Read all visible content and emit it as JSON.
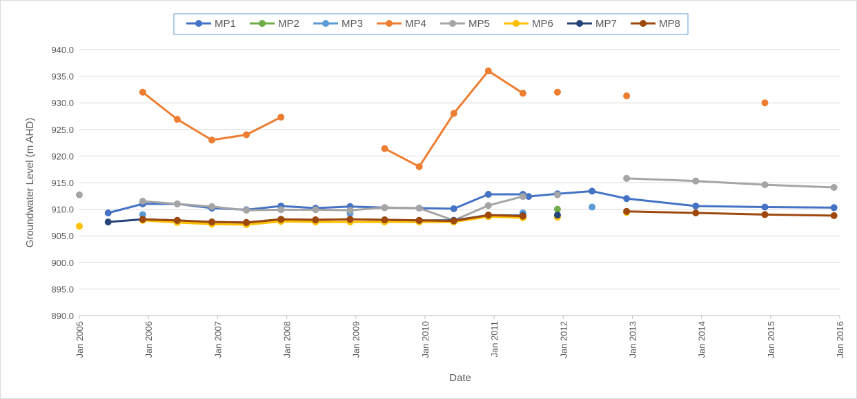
{
  "chart_data": {
    "type": "line",
    "x_label": "Date",
    "y_label": "Groundwater Level (m AHD)",
    "x": [
      "2005-01",
      "2005-06",
      "2005-12",
      "2006-06",
      "2006-12",
      "2007-06",
      "2007-12",
      "2008-06",
      "2008-12",
      "2009-06",
      "2009-12",
      "2010-06",
      "2010-12",
      "2011-06",
      "2011-07",
      "2011-12",
      "2012-06",
      "2012-12",
      "2013-12",
      "2014-12",
      "2015-12"
    ],
    "xlim": [
      "2005-01",
      "2016-01"
    ],
    "xticks": [
      {
        "value": "2005-01",
        "label": "Jan 2005"
      },
      {
        "value": "2006-01",
        "label": "Jan 2006"
      },
      {
        "value": "2007-01",
        "label": "Jan 2007"
      },
      {
        "value": "2008-01",
        "label": "Jan 2008"
      },
      {
        "value": "2009-01",
        "label": "Jan 2009"
      },
      {
        "value": "2010-01",
        "label": "Jan 2010"
      },
      {
        "value": "2011-01",
        "label": "Jan 2011"
      },
      {
        "value": "2012-01",
        "label": "Jan 2012"
      },
      {
        "value": "2013-01",
        "label": "Jan 2013"
      },
      {
        "value": "2014-01",
        "label": "Jan 2014"
      },
      {
        "value": "2015-01",
        "label": "Jan 2015"
      },
      {
        "value": "2016-01",
        "label": "Jan 2016"
      }
    ],
    "ylim": [
      890,
      940
    ],
    "yticks": [
      {
        "value": 890,
        "label": "890.0"
      },
      {
        "value": 895,
        "label": "895.0"
      },
      {
        "value": 900,
        "label": "900.0"
      },
      {
        "value": 905,
        "label": "905.0"
      },
      {
        "value": 910,
        "label": "910.0"
      },
      {
        "value": 915,
        "label": "915.0"
      },
      {
        "value": 920,
        "label": "920.0"
      },
      {
        "value": 925,
        "label": "925.0"
      },
      {
        "value": 930,
        "label": "930.0"
      },
      {
        "value": 935,
        "label": "935.0"
      },
      {
        "value": 940,
        "label": "940.0"
      }
    ],
    "grid": true,
    "legend": "top",
    "series": [
      {
        "name": "MP1",
        "color": "#4472c4",
        "values": [
          null,
          909.3,
          911.0,
          911.0,
          910.2,
          909.9,
          910.6,
          910.2,
          910.5,
          910.3,
          910.2,
          910.1,
          912.8,
          912.8,
          912.4,
          912.9,
          913.4,
          912.0,
          910.6,
          910.4,
          910.3
        ]
      },
      {
        "name": "MP2",
        "color": "#70ad47",
        "values": [
          null,
          null,
          null,
          null,
          null,
          null,
          null,
          null,
          null,
          null,
          null,
          null,
          null,
          null,
          null,
          910.0,
          null,
          null,
          null,
          null,
          null
        ]
      },
      {
        "name": "MP3",
        "color": "#5b9bd5",
        "values": [
          null,
          null,
          909.0,
          null,
          null,
          null,
          null,
          null,
          909.2,
          null,
          null,
          null,
          null,
          909.3,
          null,
          null,
          910.4,
          null,
          null,
          null,
          null
        ]
      },
      {
        "name": "MP4",
        "color": "#ed7d31",
        "values": [
          null,
          null,
          932.0,
          926.9,
          923.0,
          924.0,
          927.3,
          null,
          null,
          921.4,
          918.0,
          928.0,
          936.0,
          931.8,
          null,
          932.0,
          null,
          931.3,
          null,
          930.0,
          null
        ]
      },
      {
        "name": "MP5",
        "color": "#a5a5a5",
        "values": [
          912.7,
          null,
          911.5,
          911.0,
          910.5,
          909.8,
          909.9,
          909.9,
          909.8,
          910.3,
          910.2,
          907.9,
          910.7,
          912.4,
          null,
          912.7,
          null,
          915.8,
          915.3,
          914.6,
          914.1
        ]
      },
      {
        "name": "MP6",
        "color": "#ffc000",
        "values": [
          906.8,
          null,
          907.9,
          907.5,
          907.2,
          907.1,
          907.7,
          907.6,
          907.6,
          907.6,
          907.6,
          907.6,
          908.6,
          908.4,
          null,
          908.5,
          null,
          909.4,
          null,
          null,
          null
        ]
      },
      {
        "name": "MP7",
        "color": "#264478",
        "values": [
          null,
          907.6,
          908.1,
          907.9,
          907.6,
          907.5,
          908.1,
          908.0,
          908.1,
          908.0,
          907.9,
          907.9,
          908.9,
          908.8,
          null,
          908.9,
          null,
          null,
          null,
          null,
          null
        ]
      },
      {
        "name": "MP8",
        "color": "#9e480e",
        "values": [
          null,
          null,
          908.1,
          907.9,
          907.6,
          907.5,
          908.1,
          908.0,
          908.1,
          908.0,
          907.9,
          907.8,
          908.9,
          908.7,
          null,
          null,
          null,
          909.6,
          909.3,
          909.0,
          908.8
        ]
      }
    ]
  }
}
